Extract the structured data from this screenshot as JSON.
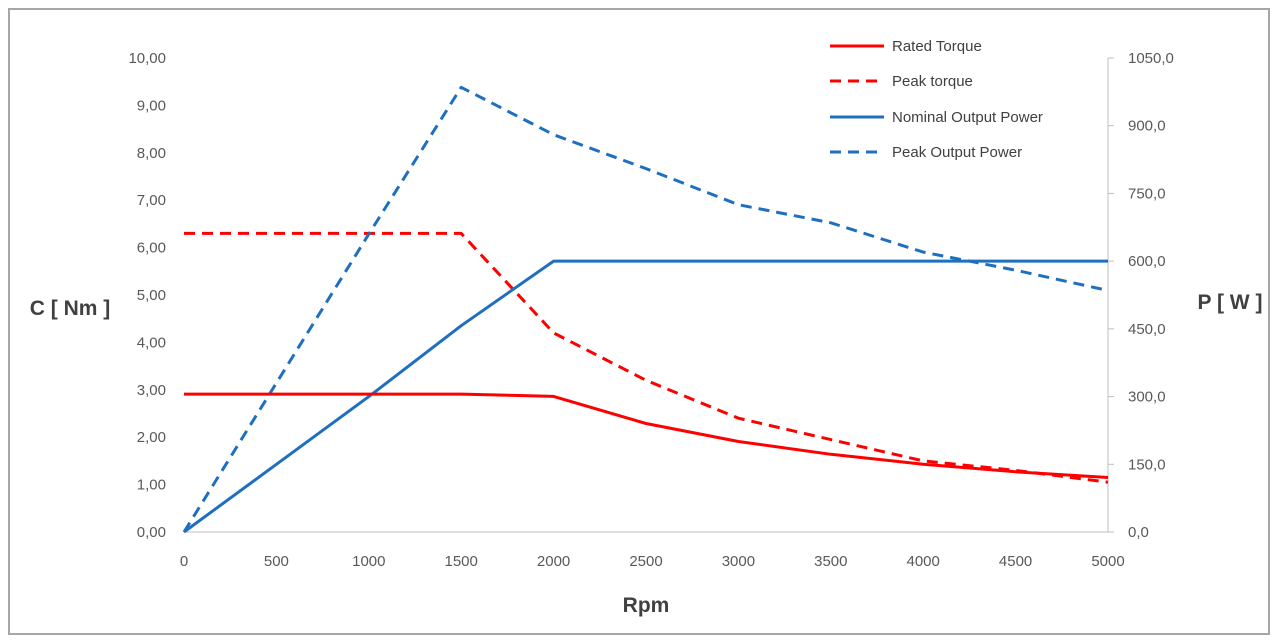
{
  "chart_data": {
    "type": "line",
    "xlabel": "Rpm",
    "ylabel_left": "C [ Nm ]",
    "ylabel_right": "P [ W ]",
    "x": [
      0,
      500,
      1000,
      1500,
      2000,
      2500,
      3000,
      3500,
      4000,
      4500,
      5000
    ],
    "x_ticks": [
      "0",
      "500",
      "1000",
      "1500",
      "2000",
      "2500",
      "3000",
      "3500",
      "4000",
      "4500",
      "5000"
    ],
    "xlim": [
      0,
      5000
    ],
    "ylim_left": [
      0,
      10
    ],
    "ylim_right": [
      0,
      1050
    ],
    "y_ticks_left": [
      "0,00",
      "1,00",
      "2,00",
      "3,00",
      "4,00",
      "5,00",
      "6,00",
      "7,00",
      "8,00",
      "9,00",
      "10,00"
    ],
    "y_ticks_right": [
      "0,0",
      "150,0",
      "300,0",
      "450,0",
      "600,0",
      "750,0",
      "900,0",
      "1050,0"
    ],
    "grid": false,
    "legend_position": "top-right",
    "series": [
      {
        "name": "Rated Torque",
        "axis": "left",
        "color": "#ff0000",
        "dash": false,
        "values": [
          2.91,
          2.91,
          2.91,
          2.91,
          2.86,
          2.29,
          1.91,
          1.64,
          1.43,
          1.27,
          1.15
        ]
      },
      {
        "name": "Peak torque",
        "axis": "left",
        "color": "#ff0000",
        "dash": true,
        "values": [
          6.3,
          6.3,
          6.3,
          6.3,
          4.2,
          3.2,
          2.4,
          1.95,
          1.5,
          1.3,
          1.05
        ]
      },
      {
        "name": "Nominal Output Power",
        "axis": "right",
        "color": "#1f6fbf",
        "dash": false,
        "values": [
          0,
          150,
          300,
          457,
          600,
          600,
          600,
          600,
          600,
          600,
          600
        ]
      },
      {
        "name": "Peak Output Power",
        "axis": "right",
        "color": "#1f6fbf",
        "dash": true,
        "values": [
          0,
          330,
          660,
          985,
          880,
          805,
          725,
          685,
          620,
          580,
          535
        ]
      }
    ]
  }
}
